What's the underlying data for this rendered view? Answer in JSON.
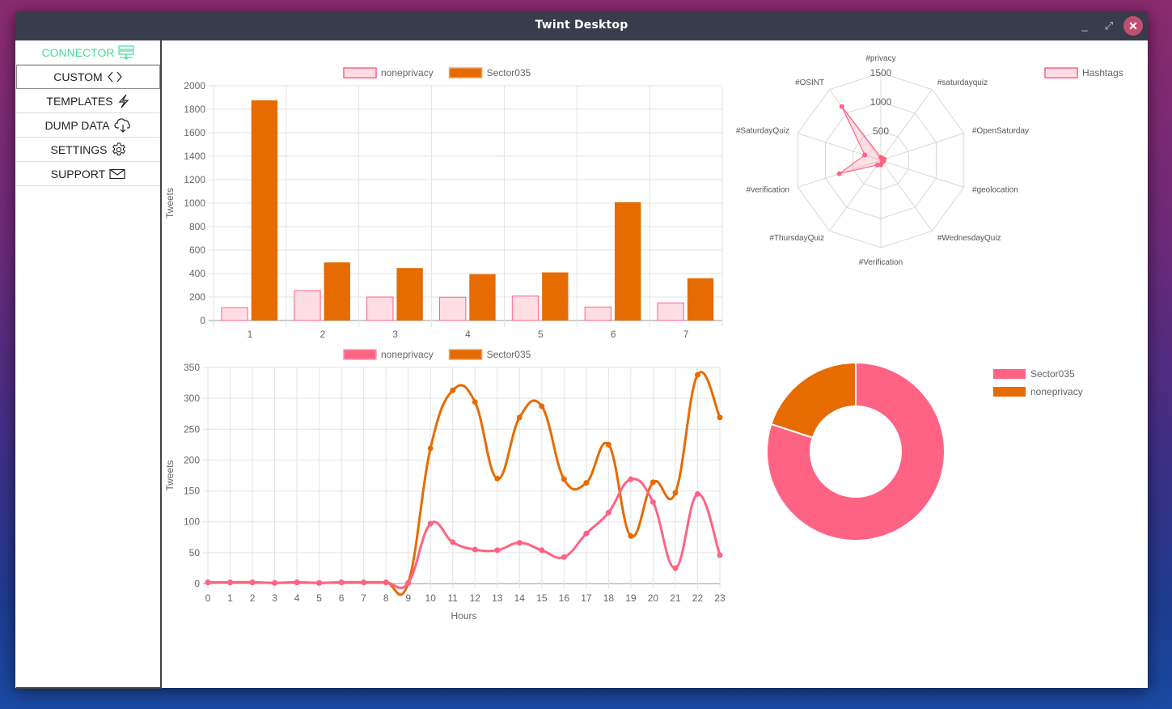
{
  "window": {
    "title": "Twint Desktop",
    "controls": {
      "minimize": "_",
      "maximize": "⤢",
      "close": "✕"
    }
  },
  "sidebar": {
    "items": [
      {
        "label": "CONNECTOR",
        "icon": "server-icon",
        "active": true
      },
      {
        "label": "CUSTOM",
        "icon": "code-brackets-icon"
      },
      {
        "label": "TEMPLATES",
        "icon": "lightning-icon"
      },
      {
        "label": "DUMP DATA",
        "icon": "cloud-download-icon"
      },
      {
        "label": "SETTINGS",
        "icon": "gear-icon"
      },
      {
        "label": "SUPPORT",
        "icon": "envelope-icon"
      }
    ]
  },
  "colors": {
    "pink": "#ff6384",
    "pink_light": "#ffdde4",
    "orange": "#e66b00",
    "accent_green": "#4ad99a",
    "titlebar": "#393c4a",
    "close": "#c04e72"
  },
  "chart_data": [
    {
      "id": "weekday-bar",
      "type": "bar",
      "title": "",
      "xlabel": "",
      "ylabel": "Tweets",
      "categories": [
        "1",
        "2",
        "3",
        "4",
        "5",
        "6",
        "7"
      ],
      "series": [
        {
          "name": "noneprivacy",
          "values": [
            110,
            255,
            200,
            198,
            208,
            115,
            150
          ]
        },
        {
          "name": "Sector035",
          "values": [
            1876,
            495,
            447,
            395,
            410,
            1008,
            360
          ]
        }
      ],
      "ylim": [
        0,
        2000
      ],
      "yticks": [
        0,
        200,
        400,
        600,
        800,
        1000,
        1200,
        1400,
        1600,
        1800,
        2000
      ],
      "grid": true,
      "legend": "top"
    },
    {
      "id": "hashtags-radar",
      "type": "radar",
      "labels": [
        "#privacy",
        "#saturdayquiz",
        "#OpenSaturday",
        "#geolocation",
        "#WednesdayQuiz",
        "#Verification",
        "#ThursdayQuiz",
        "#verification",
        "#SaturdayQuiz",
        "#OSINT"
      ],
      "series": [
        {
          "name": "Hashtags",
          "values": [
            50,
            40,
            60,
            50,
            40,
            80,
            100,
            750,
            290,
            1140
          ]
        }
      ],
      "rlim": [
        0,
        1500
      ],
      "rticks": [
        500,
        1000,
        1500
      ],
      "legend": "top-right"
    },
    {
      "id": "hourly-line",
      "type": "line",
      "xlabel": "Hours",
      "ylabel": "Tweets",
      "x": [
        "0",
        "1",
        "2",
        "3",
        "4",
        "5",
        "6",
        "7",
        "8",
        "9",
        "10",
        "11",
        "12",
        "13",
        "14",
        "15",
        "16",
        "17",
        "18",
        "19",
        "20",
        "21",
        "22",
        "23"
      ],
      "series": [
        {
          "name": "noneprivacy",
          "values": [
            2,
            2,
            2,
            1,
            2,
            1,
            2,
            2,
            2,
            1,
            97,
            67,
            55,
            54,
            66,
            54,
            43,
            81,
            115,
            169,
            132,
            25,
            145,
            46
          ]
        },
        {
          "name": "Sector035",
          "values": [
            2,
            2,
            2,
            1,
            2,
            1,
            2,
            2,
            2,
            1,
            219,
            313,
            294,
            170,
            269,
            287,
            169,
            163,
            225,
            77,
            164,
            147,
            338,
            269
          ]
        }
      ],
      "ylim": [
        0,
        350
      ],
      "yticks": [
        0,
        50,
        100,
        150,
        200,
        250,
        300,
        350
      ],
      "grid": true,
      "legend": "top"
    },
    {
      "id": "share-doughnut",
      "type": "pie",
      "variant": "doughnut",
      "labels": [
        "Sector035",
        "noneprivacy"
      ],
      "values": [
        80,
        20
      ],
      "legend": "right"
    }
  ]
}
